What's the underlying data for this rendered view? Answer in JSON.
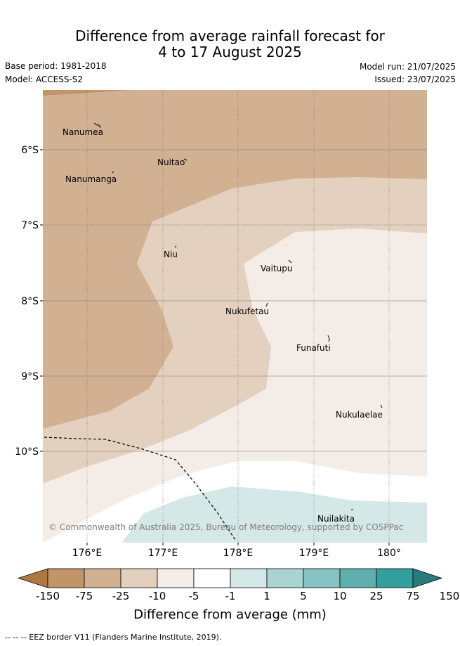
{
  "header": {
    "title_line1": "Difference from average rainfall forecast for",
    "title_line2": "4 to 17 August 2025",
    "base_period": "Base period: 1981-2018",
    "model": "Model: ACCESS-S2",
    "model_run": "Model run: 21/07/2025",
    "issued": "Issued: 23/07/2025"
  },
  "map": {
    "lat_labels": [
      "6°S",
      "7°S",
      "8°S",
      "9°S",
      "10°S"
    ],
    "lon_labels": [
      "176°E",
      "177°E",
      "178°E",
      "179°E",
      "180°"
    ],
    "places": [
      "Nanumea",
      "Nuitao",
      "Nanumanga",
      "Niu",
      "Vaitupu",
      "Nukufetau",
      "Funafuti",
      "Nukulaelae",
      "Nuilakita"
    ],
    "copyright": "© Commonwealth of Australia 2025, Bureau of Meteorology, supported by COSPPac",
    "colors": {
      "c_-75_-25": "#d2b193",
      "c_-25_-10": "#e3cfbd",
      "c_-10_-5": "#e3d0be",
      "c_-5_-1": "#f4ece7",
      "c_-1_1": "#ffffff",
      "c_1_5": "#d4e8e7"
    }
  },
  "colorbar": {
    "ticks": [
      "-150",
      "-75",
      "-25",
      "-10",
      "-5",
      "-1",
      "1",
      "5",
      "10",
      "25",
      "75",
      "150"
    ],
    "colors": [
      "#b07840",
      "#c19469",
      "#d2b193",
      "#e3cfbd",
      "#f4ece7",
      "#ffffff",
      "#d4e8e7",
      "#aad3d3",
      "#86c3c2",
      "#5eafae",
      "#339f9e",
      "#2b7b7b"
    ],
    "title": "Difference from average (mm)"
  },
  "footnote": "-- -- -- EEZ border V11 (Flanders Marine Institute, 2019)."
}
